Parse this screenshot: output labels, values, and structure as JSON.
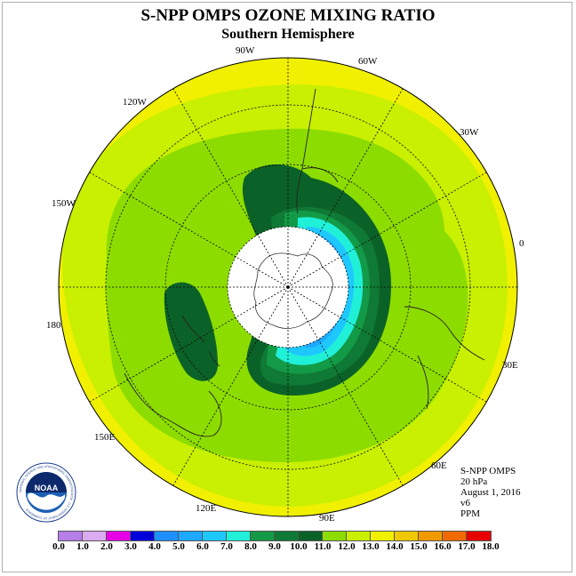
{
  "title": "S-NPP OMPS OZONE MIXING RATIO",
  "subtitle": "Southern Hemisphere",
  "longitude_labels": [
    "90W",
    "60W",
    "30W",
    "0",
    "30E",
    "60E",
    "90E",
    "120E",
    "150E",
    "180",
    "150W",
    "120W"
  ],
  "info": {
    "instrument": "S-NPP OMPS",
    "level": "20 hPa",
    "date": "August 1, 2016",
    "version": "v6",
    "units": "PPM"
  },
  "logo": {
    "text": "NOAA",
    "ring_text": "NATIONAL OCEANIC AND ATMOSPHERIC ADMINISTRATION · U.S. DEPARTMENT OF COMMERCE",
    "icon": "noaa-logo-icon"
  },
  "colorbar": {
    "ticks": [
      "0.0",
      "1.0",
      "2.0",
      "3.0",
      "4.0",
      "5.0",
      "6.0",
      "7.0",
      "8.0",
      "9.0",
      "10.0",
      "11.0",
      "12.0",
      "13.0",
      "14.0",
      "15.0",
      "16.0",
      "17.0",
      "18.0"
    ],
    "colors": [
      "#b57ee8",
      "#dcaaf0",
      "#e600e6",
      "#0000d9",
      "#1e90ff",
      "#1ea8ff",
      "#1ec8ff",
      "#20f0d8",
      "#139a47",
      "#0f7a35",
      "#0b6228",
      "#8ddc00",
      "#c8f000",
      "#f0f000",
      "#f0c800",
      "#f09a00",
      "#f06a00",
      "#e60000",
      "#8a5a3a"
    ]
  },
  "map_colors": {
    "background_ring": "#f0f000",
    "outer": "#c8f000",
    "mid": "#8ddc00",
    "dark": "#0f7a35",
    "darkest": "#0b6228",
    "green2": "#139a47",
    "cyan": "#20f0d8",
    "cyan2": "#1ec8ff",
    "blue": "#1ea8ff",
    "polar_cap": "#ffffff"
  }
}
